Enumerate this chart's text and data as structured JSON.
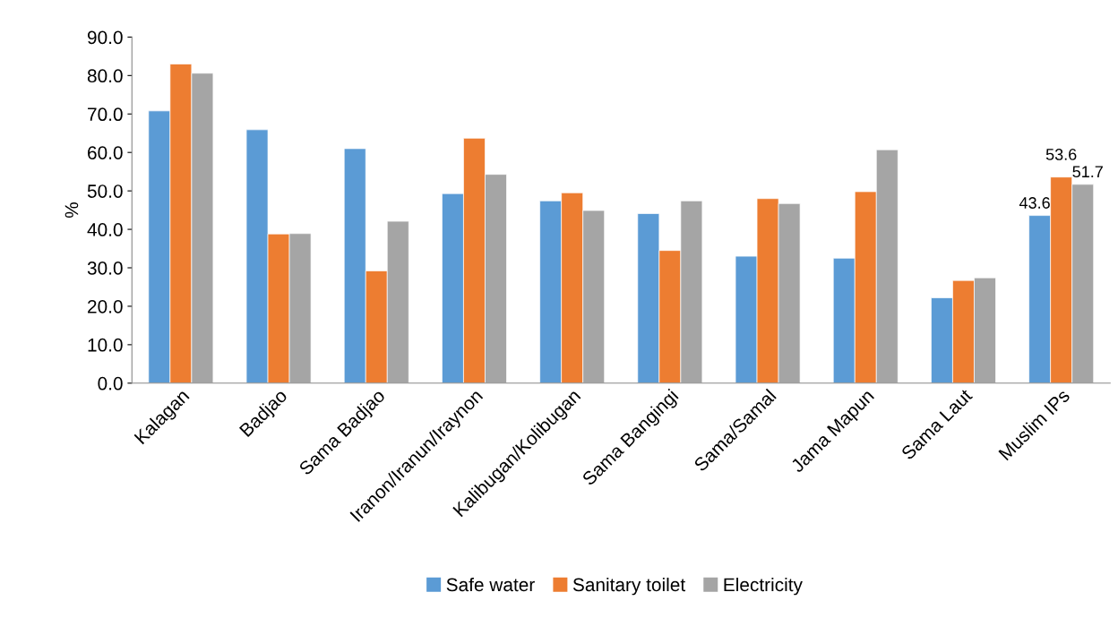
{
  "chart_data": {
    "type": "bar",
    "ylabel": "%",
    "categories": [
      "Kalagan",
      "Badjao",
      "Sama Badjao",
      "Iranon/Iranun/Iraynon",
      "Kalibugan/Kolibugan",
      "Sama Bangingi",
      "Sama/Samal",
      "Jama Mapun",
      "Sama Laut",
      "Muslim IPs"
    ],
    "series": [
      {
        "name": "Safe water",
        "color": "#5b9bd5",
        "values": [
          70.8,
          65.9,
          61.0,
          49.3,
          47.4,
          44.1,
          33.0,
          32.5,
          22.2,
          43.6
        ],
        "value_labels": [
          null,
          null,
          null,
          null,
          null,
          null,
          null,
          null,
          null,
          "43.6"
        ]
      },
      {
        "name": "Sanitary toilet",
        "color": "#ed7d31",
        "values": [
          83.0,
          38.8,
          29.2,
          63.7,
          49.5,
          34.5,
          48.0,
          49.8,
          26.7,
          53.6
        ],
        "value_labels": [
          null,
          null,
          null,
          null,
          null,
          null,
          null,
          null,
          null,
          "53.6"
        ]
      },
      {
        "name": "Electricity",
        "color": "#a5a5a5",
        "values": [
          80.6,
          38.9,
          42.1,
          54.3,
          44.9,
          47.4,
          46.7,
          60.7,
          27.4,
          51.7
        ],
        "value_labels": [
          null,
          null,
          null,
          null,
          null,
          null,
          null,
          null,
          null,
          "51.7"
        ]
      }
    ],
    "ylim": [
      0,
      90
    ],
    "yticks": [
      {
        "value": 0,
        "label": "0.0"
      },
      {
        "value": 10,
        "label": "10.0"
      },
      {
        "value": 20,
        "label": "20.0"
      },
      {
        "value": 30,
        "label": "30.0"
      },
      {
        "value": 40,
        "label": "40.0"
      },
      {
        "value": 50,
        "label": "50.0"
      },
      {
        "value": 60,
        "label": "60.0"
      },
      {
        "value": 70,
        "label": "70.0"
      },
      {
        "value": 80,
        "label": "80.0"
      },
      {
        "value": 90,
        "label": "90.0"
      }
    ],
    "grid": false,
    "legend": "bottom"
  }
}
